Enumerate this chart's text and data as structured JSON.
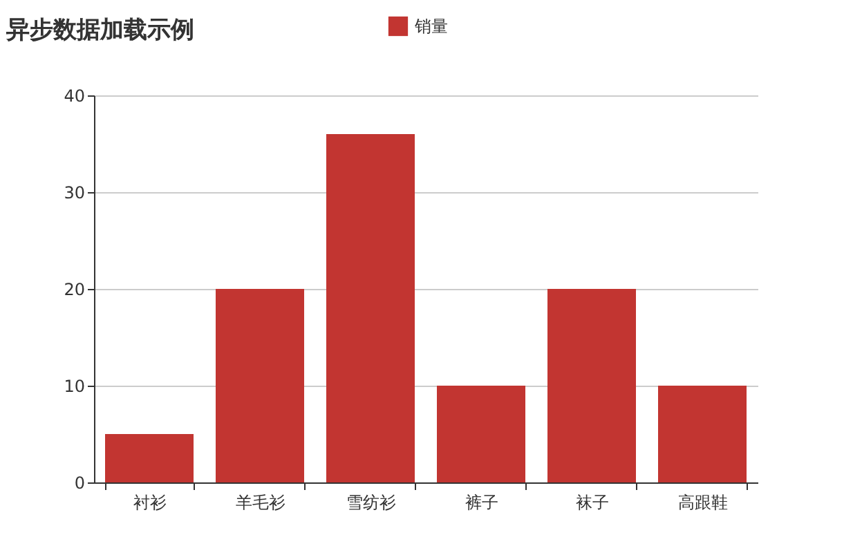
{
  "chart_data": {
    "type": "bar",
    "title": "异步数据加载示例",
    "categories": [
      "衬衫",
      "羊毛衫",
      "雪纺衫",
      "裤子",
      "袜子",
      "高跟鞋"
    ],
    "series": [
      {
        "name": "销量",
        "color": "#c23531",
        "values": [
          5,
          20,
          36,
          10,
          20,
          10
        ]
      }
    ],
    "ylim": [
      0,
      40
    ],
    "yticks": [
      0,
      10,
      20,
      30,
      40
    ],
    "grid": "y",
    "legend": "top"
  }
}
